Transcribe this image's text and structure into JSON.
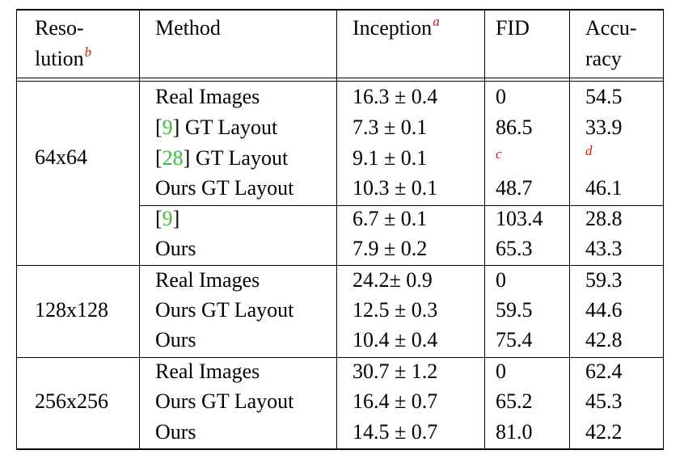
{
  "header": {
    "resolution_line1": "Reso-",
    "resolution_line2": "lution",
    "resolution_note": "b",
    "method": "Method",
    "inception": "Inception",
    "inception_note": "a",
    "fid": "FID",
    "accuracy_line1": "Accu-",
    "accuracy_line2": "racy"
  },
  "groups": [
    {
      "resolution": "64x64",
      "rows": [
        {
          "method": "Real Images",
          "inception": "16.3 ± 0.4",
          "fid": "0",
          "accuracy": "54.5"
        },
        {
          "cite_open": "[",
          "cite": "9",
          "cite_close": "]",
          "method": " GT Layout",
          "inception": "7.3 ± 0.1",
          "fid": "86.5",
          "accuracy": "33.9"
        },
        {
          "cite_open": "[",
          "cite": "28",
          "cite_close": "]",
          "method": " GT Layout",
          "inception": "9.1 ± 0.1",
          "fid_note": "c",
          "accuracy_note": "d"
        },
        {
          "method": "Ours GT Layout",
          "inception": "10.3 ± 0.1",
          "fid": "48.7",
          "accuracy": "46.1"
        },
        {
          "cite_open": "[",
          "cite": "9",
          "cite_close": "]",
          "inception": "6.7 ± 0.1",
          "fid": "103.4",
          "accuracy": "28.8"
        },
        {
          "method": "Ours",
          "inception": "7.9 ± 0.2",
          "fid": "65.3",
          "accuracy": "43.3"
        }
      ]
    },
    {
      "resolution": "128x128",
      "rows": [
        {
          "method": "Real Images",
          "inception": "24.2± 0.9",
          "fid": "0",
          "accuracy": "59.3"
        },
        {
          "method": "Ours GT Layout",
          "inception": "12.5 ± 0.3",
          "fid": "59.5",
          "accuracy": "44.6"
        },
        {
          "method": "Ours",
          "inception": "10.4 ± 0.4",
          "fid": "75.4",
          "accuracy": "42.8"
        }
      ]
    },
    {
      "resolution": "256x256",
      "rows": [
        {
          "method": "Real Images",
          "inception": "30.7 ± 1.2",
          "fid": "0",
          "accuracy": "62.4"
        },
        {
          "method": "Ours GT Layout",
          "inception": "16.4 ± 0.7",
          "fid": "65.2",
          "accuracy": "45.3"
        },
        {
          "method": "Ours",
          "inception": "14.5 ± 0.7",
          "fid": "81.0",
          "accuracy": "42.2"
        }
      ]
    }
  ]
}
